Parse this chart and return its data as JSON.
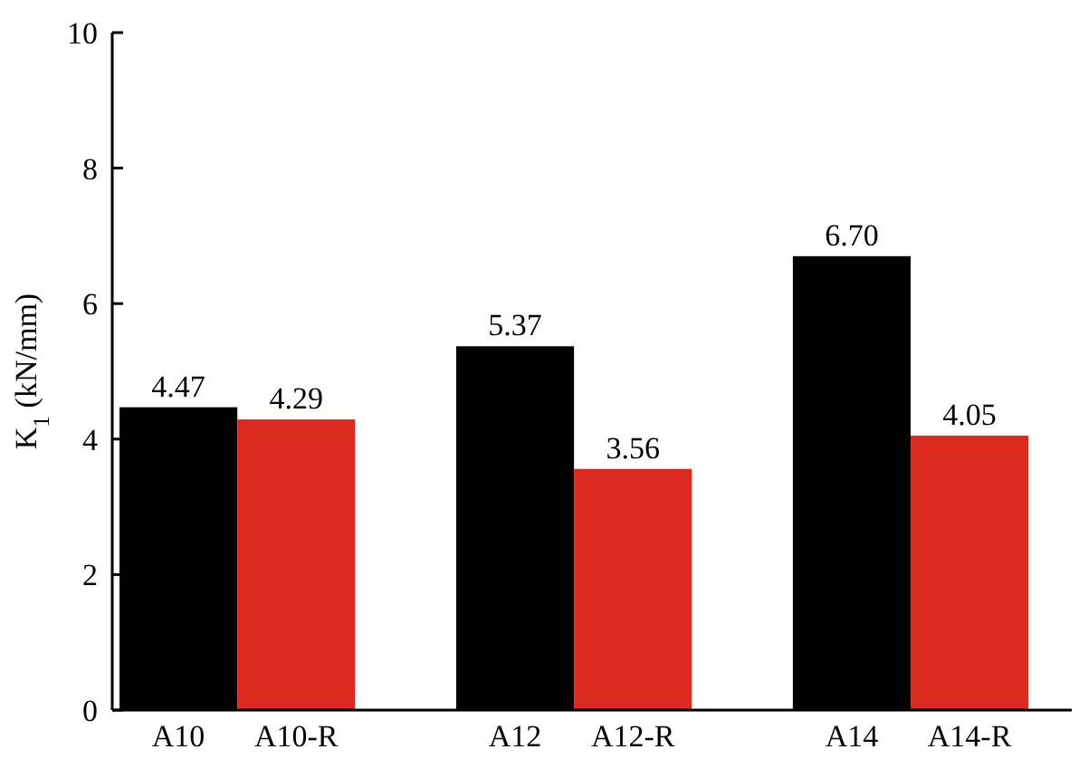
{
  "chart_data": {
    "type": "bar",
    "ylabel": "K$_{1}$ (kN/mm)",
    "categories": [
      "A10",
      "A10-R",
      "A12",
      "A12-R",
      "A14",
      "A14-R"
    ],
    "values": [
      4.47,
      4.29,
      5.37,
      3.56,
      6.7,
      4.05
    ],
    "colors": [
      "#000000",
      "#dc2a1e",
      "#000000",
      "#dc2a1e",
      "#000000",
      "#dc2a1e"
    ],
    "value_labels": [
      "4.47",
      "4.29",
      "5.37",
      "3.56",
      "6.70",
      "4.05"
    ],
    "ylim": [
      0,
      10
    ],
    "yticks": [
      0,
      2,
      4,
      6,
      8,
      10
    ],
    "grid": false
  }
}
